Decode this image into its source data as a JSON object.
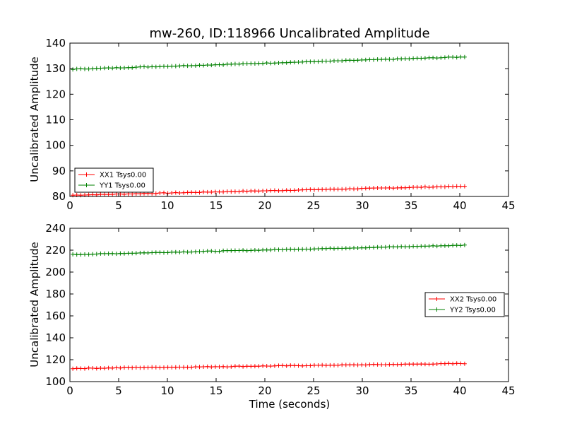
{
  "chart_data": [
    {
      "type": "line",
      "title": "mw-260, ID:118966 Uncalibrated Amplitude",
      "xlabel": "",
      "ylabel": "Uncalibrated Amplitude",
      "xlim": [
        0,
        45
      ],
      "ylim": [
        80,
        140
      ],
      "xticks": [
        "0",
        "5",
        "10",
        "15",
        "20",
        "25",
        "30",
        "35",
        "40",
        "45"
      ],
      "yticks": [
        "80",
        "90",
        "100",
        "110",
        "120",
        "130",
        "140"
      ],
      "legend_position": "lower-left",
      "x_start": 0.3,
      "x_end": 40.5,
      "n_points": 100,
      "series": [
        {
          "name": "XX1 Tsys0.00",
          "color": "#ff0000",
          "y_start": 80.5,
          "y_end": 84.0
        },
        {
          "name": "YY1 Tsys0.00",
          "color": "#008000",
          "y_start": 129.8,
          "y_end": 134.6
        }
      ]
    },
    {
      "type": "line",
      "title": "",
      "xlabel": "Time (seconds)",
      "ylabel": "Uncalibrated Amplitude",
      "xlim": [
        0,
        45
      ],
      "ylim": [
        100,
        240
      ],
      "xticks": [
        "0",
        "5",
        "10",
        "15",
        "20",
        "25",
        "30",
        "35",
        "40",
        "45"
      ],
      "yticks": [
        "100",
        "120",
        "140",
        "160",
        "180",
        "200",
        "220",
        "240"
      ],
      "legend_position": "center-right",
      "x_start": 0.3,
      "x_end": 40.5,
      "n_points": 100,
      "series": [
        {
          "name": "XX2 Tsys0.00",
          "color": "#ff0000",
          "y_start": 112.0,
          "y_end": 116.5
        },
        {
          "name": "YY2 Tsys0.00",
          "color": "#008000",
          "y_start": 216.0,
          "y_end": 224.5
        }
      ]
    }
  ]
}
